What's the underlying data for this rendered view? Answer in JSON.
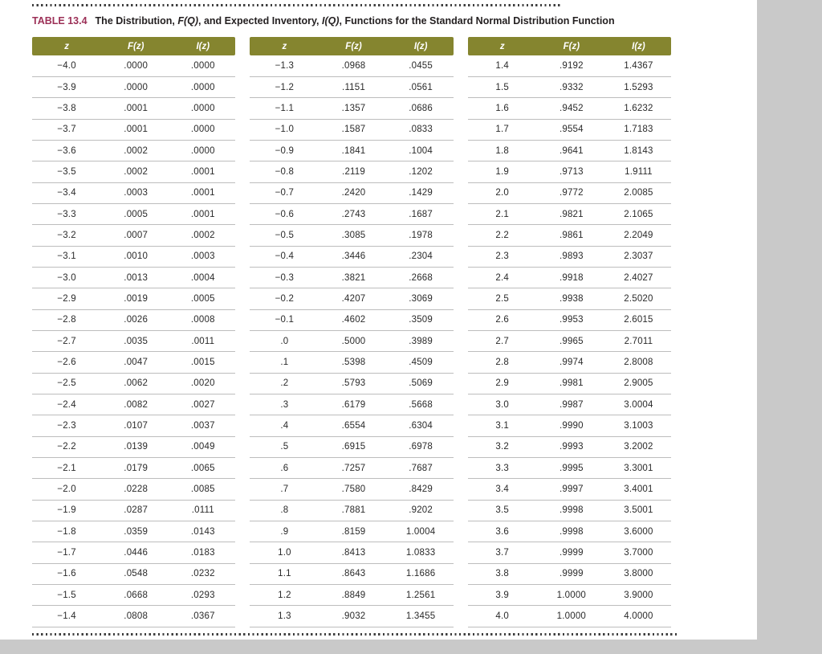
{
  "caption": {
    "label": "TABLE 13.4",
    "title_parts": [
      "The Distribution, ",
      "F(Q)",
      ", and Expected Inventory, ",
      "I(Q)",
      ", Functions for the Standard Normal Distribution Function"
    ]
  },
  "colors": {
    "header_bg": "#85852f",
    "label_color": "#9c3057"
  },
  "columns": [
    "z",
    "F(z)",
    "I(z)"
  ],
  "groups": [
    {
      "rows": [
        [
          "−4.0",
          ".0000",
          ".0000"
        ],
        [
          "−3.9",
          ".0000",
          ".0000"
        ],
        [
          "−3.8",
          ".0001",
          ".0000"
        ],
        [
          "−3.7",
          ".0001",
          ".0000"
        ],
        [
          "−3.6",
          ".0002",
          ".0000"
        ],
        [
          "−3.5",
          ".0002",
          ".0001"
        ],
        [
          "−3.4",
          ".0003",
          ".0001"
        ],
        [
          "−3.3",
          ".0005",
          ".0001"
        ],
        [
          "−3.2",
          ".0007",
          ".0002"
        ],
        [
          "−3.1",
          ".0010",
          ".0003"
        ],
        [
          "−3.0",
          ".0013",
          ".0004"
        ],
        [
          "−2.9",
          ".0019",
          ".0005"
        ],
        [
          "−2.8",
          ".0026",
          ".0008"
        ],
        [
          "−2.7",
          ".0035",
          ".0011"
        ],
        [
          "−2.6",
          ".0047",
          ".0015"
        ],
        [
          "−2.5",
          ".0062",
          ".0020"
        ],
        [
          "−2.4",
          ".0082",
          ".0027"
        ],
        [
          "−2.3",
          ".0107",
          ".0037"
        ],
        [
          "−2.2",
          ".0139",
          ".0049"
        ],
        [
          "−2.1",
          ".0179",
          ".0065"
        ],
        [
          "−2.0",
          ".0228",
          ".0085"
        ],
        [
          "−1.9",
          ".0287",
          ".0111"
        ],
        [
          "−1.8",
          ".0359",
          ".0143"
        ],
        [
          "−1.7",
          ".0446",
          ".0183"
        ],
        [
          "−1.6",
          ".0548",
          ".0232"
        ],
        [
          "−1.5",
          ".0668",
          ".0293"
        ],
        [
          "−1.4",
          ".0808",
          ".0367"
        ]
      ]
    },
    {
      "rows": [
        [
          "−1.3",
          ".0968",
          ".0455"
        ],
        [
          "−1.2",
          ".1151",
          ".0561"
        ],
        [
          "−1.1",
          ".1357",
          ".0686"
        ],
        [
          "−1.0",
          ".1587",
          ".0833"
        ],
        [
          "−0.9",
          ".1841",
          ".1004"
        ],
        [
          "−0.8",
          ".2119",
          ".1202"
        ],
        [
          "−0.7",
          ".2420",
          ".1429"
        ],
        [
          "−0.6",
          ".2743",
          ".1687"
        ],
        [
          "−0.5",
          ".3085",
          ".1978"
        ],
        [
          "−0.4",
          ".3446",
          ".2304"
        ],
        [
          "−0.3",
          ".3821",
          ".2668"
        ],
        [
          "−0.2",
          ".4207",
          ".3069"
        ],
        [
          "−0.1",
          ".4602",
          ".3509"
        ],
        [
          ".0",
          ".5000",
          ".3989"
        ],
        [
          ".1",
          ".5398",
          ".4509"
        ],
        [
          ".2",
          ".5793",
          ".5069"
        ],
        [
          ".3",
          ".6179",
          ".5668"
        ],
        [
          ".4",
          ".6554",
          ".6304"
        ],
        [
          ".5",
          ".6915",
          ".6978"
        ],
        [
          ".6",
          ".7257",
          ".7687"
        ],
        [
          ".7",
          ".7580",
          ".8429"
        ],
        [
          ".8",
          ".7881",
          ".9202"
        ],
        [
          ".9",
          ".8159",
          "1.0004"
        ],
        [
          "1.0",
          ".8413",
          "1.0833"
        ],
        [
          "1.1",
          ".8643",
          "1.1686"
        ],
        [
          "1.2",
          ".8849",
          "1.2561"
        ],
        [
          "1.3",
          ".9032",
          "1.3455"
        ]
      ]
    },
    {
      "rows": [
        [
          "1.4",
          ".9192",
          "1.4367"
        ],
        [
          "1.5",
          ".9332",
          "1.5293"
        ],
        [
          "1.6",
          ".9452",
          "1.6232"
        ],
        [
          "1.7",
          ".9554",
          "1.7183"
        ],
        [
          "1.8",
          ".9641",
          "1.8143"
        ],
        [
          "1.9",
          ".9713",
          "1.9111"
        ],
        [
          "2.0",
          ".9772",
          "2.0085"
        ],
        [
          "2.1",
          ".9821",
          "2.1065"
        ],
        [
          "2.2",
          ".9861",
          "2.2049"
        ],
        [
          "2.3",
          ".9893",
          "2.3037"
        ],
        [
          "2.4",
          ".9918",
          "2.4027"
        ],
        [
          "2.5",
          ".9938",
          "2.5020"
        ],
        [
          "2.6",
          ".9953",
          "2.6015"
        ],
        [
          "2.7",
          ".9965",
          "2.7011"
        ],
        [
          "2.8",
          ".9974",
          "2.8008"
        ],
        [
          "2.9",
          ".9981",
          "2.9005"
        ],
        [
          "3.0",
          ".9987",
          "3.0004"
        ],
        [
          "3.1",
          ".9990",
          "3.1003"
        ],
        [
          "3.2",
          ".9993",
          "3.2002"
        ],
        [
          "3.3",
          ".9995",
          "3.3001"
        ],
        [
          "3.4",
          ".9997",
          "3.4001"
        ],
        [
          "3.5",
          ".9998",
          "3.5001"
        ],
        [
          "3.6",
          ".9998",
          "3.6000"
        ],
        [
          "3.7",
          ".9999",
          "3.7000"
        ],
        [
          "3.8",
          ".9999",
          "3.8000"
        ],
        [
          "3.9",
          "1.0000",
          "3.9000"
        ],
        [
          "4.0",
          "1.0000",
          "4.0000"
        ]
      ]
    }
  ]
}
